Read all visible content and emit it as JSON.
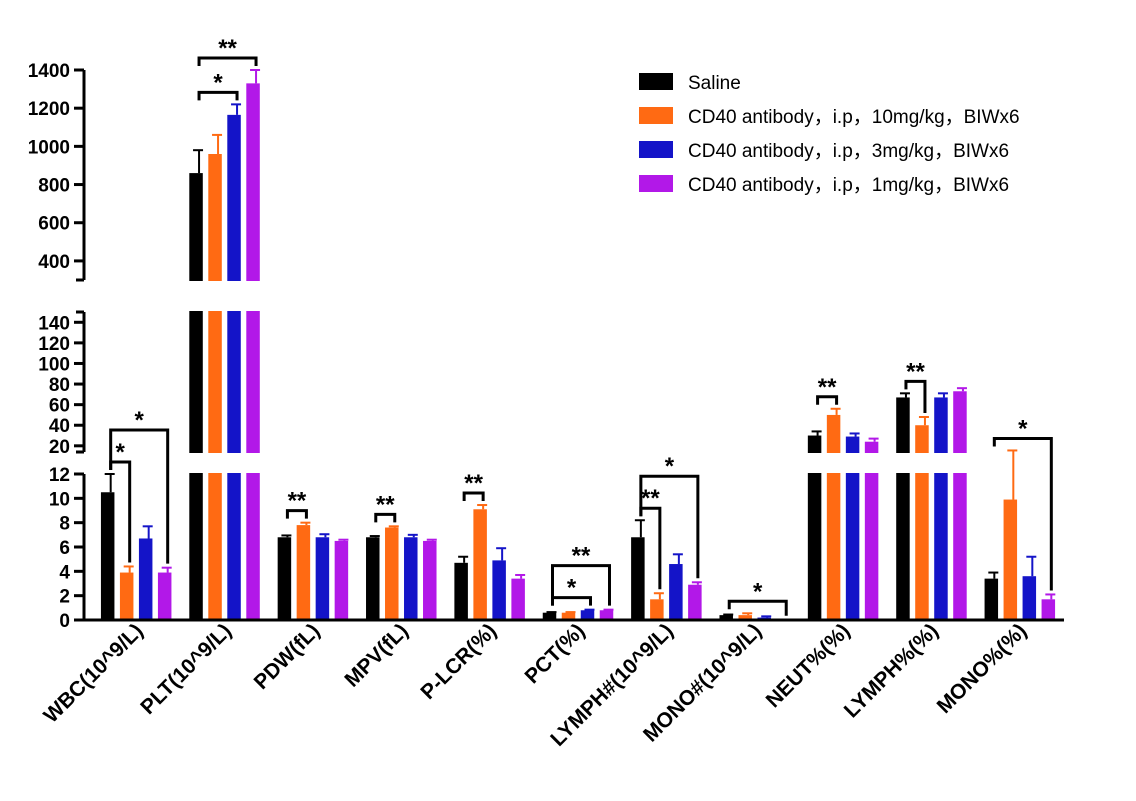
{
  "chart_data": {
    "type": "bar",
    "title": "",
    "xlabel": "",
    "ylabel": "",
    "categories": [
      "WBC(10^9/L)",
      "PLT(10^9/L)",
      "PDW(fL)",
      "MPV(fL)",
      "P-LCR(%)",
      "PCT(%)",
      "LYMPH#(10^9/L)",
      "MONO#(10^9/L)",
      "NEUT%(%)",
      "LYMPH%(%)",
      "MONO%(%)"
    ],
    "series": [
      {
        "name": "Saline",
        "color": "#000000",
        "values": [
          10.5,
          860,
          6.8,
          6.8,
          4.7,
          0.6,
          6.8,
          0.4,
          30,
          67,
          3.4
        ],
        "errors": [
          1.5,
          120,
          0.15,
          0.1,
          0.5,
          0.05,
          1.4,
          0.05,
          4,
          4,
          0.5
        ]
      },
      {
        "name": "CD40 antibody，i.p，10mg/kg，BIWx6",
        "color": "#ff6a13",
        "values": [
          3.9,
          960,
          7.8,
          7.6,
          9.1,
          0.6,
          1.7,
          0.4,
          50,
          40,
          9.9
        ],
        "errors": [
          0.5,
          100,
          0.2,
          0.1,
          0.35,
          0.05,
          0.5,
          0.15,
          6,
          8,
          5.6
        ]
      },
      {
        "name": "CD40 antibody，i.p，3mg/kg，BIWx6",
        "color": "#1414c8",
        "values": [
          6.7,
          1165,
          6.8,
          6.8,
          4.9,
          0.8,
          4.6,
          0.2,
          29,
          67,
          3.6
        ],
        "errors": [
          1,
          55,
          0.25,
          0.2,
          1,
          0.05,
          0.8,
          0.1,
          3,
          4,
          1.6
        ]
      },
      {
        "name": "CD40 antibody，i.p，1mg/kg，BIWx6",
        "color": "#b218e8",
        "values": [
          3.9,
          1330,
          6.5,
          6.5,
          3.4,
          0.8,
          2.9,
          0.0,
          24,
          73,
          1.7
        ],
        "errors": [
          0.4,
          70,
          0.1,
          0.1,
          0.3,
          0.05,
          0.2,
          0.02,
          3,
          3,
          0.4
        ]
      }
    ],
    "y_axis_segments": [
      {
        "range": [
          0,
          12
        ],
        "ticks": [
          0,
          2,
          4,
          6,
          8,
          10,
          12
        ]
      },
      {
        "range": [
          14,
          150
        ],
        "ticks": [
          20,
          40,
          60,
          80,
          100,
          120,
          140
        ]
      },
      {
        "range": [
          300,
          1400
        ],
        "ticks": [
          400,
          600,
          800,
          1000,
          1200,
          1400
        ]
      }
    ],
    "significance": [
      {
        "category": 0,
        "from": 0,
        "to": 1,
        "label": "*"
      },
      {
        "category": 0,
        "from": 0,
        "to": 3,
        "label": "*"
      },
      {
        "category": 1,
        "from": 0,
        "to": 2,
        "label": "*"
      },
      {
        "category": 1,
        "from": 0,
        "to": 3,
        "label": "**"
      },
      {
        "category": 2,
        "from": 0,
        "to": 1,
        "label": "**"
      },
      {
        "category": 3,
        "from": 0,
        "to": 1,
        "label": "**"
      },
      {
        "category": 4,
        "from": 0,
        "to": 1,
        "label": "**"
      },
      {
        "category": 5,
        "from": 0,
        "to": 2,
        "label": "*"
      },
      {
        "category": 5,
        "from": 0,
        "to": 3,
        "label": "**"
      },
      {
        "category": 6,
        "from": 0,
        "to": 1,
        "label": "**"
      },
      {
        "category": 6,
        "from": 0,
        "to": 3,
        "label": "*"
      },
      {
        "category": 7,
        "from": 0,
        "to": 3,
        "label": "*"
      },
      {
        "category": 8,
        "from": 0,
        "to": 1,
        "label": "**"
      },
      {
        "category": 9,
        "from": 0,
        "to": 1,
        "label": "**"
      },
      {
        "category": 10,
        "from": 0,
        "to": 3,
        "label": "*"
      }
    ],
    "legend_position": "top-right"
  }
}
